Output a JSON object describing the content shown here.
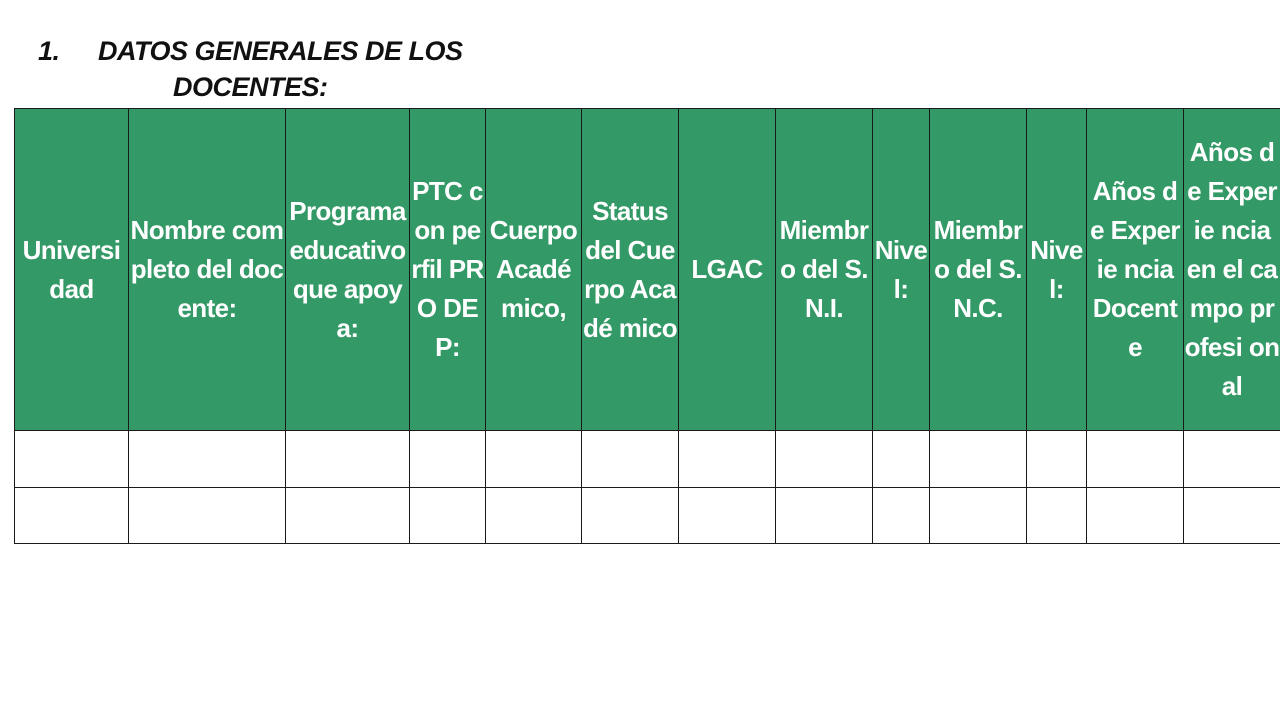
{
  "heading": {
    "number": "1.",
    "line1": "DATOS GENERALES DE LOS",
    "line2": "DOCENTES:"
  },
  "table": {
    "headers": [
      "Universi dad",
      "Nombre completo del docente:",
      "Programa educativo que apoya:",
      "PTC con perfil PRO DEP:",
      "Cuerpo Acadé mico,",
      "Status del Cuerpo Acadé mico",
      "LGAC",
      "Miembr o del S.N.I.",
      "Nive l:",
      "Miembr o del S.N.C.",
      "Nive l:",
      "Años de Experie ncia Docent e",
      "Años de Experie ncia en el campo profesi onal"
    ],
    "rows": [
      [
        "",
        "",
        "",
        "",
        "",
        "",
        "",
        "",
        "",
        "",
        "",
        "",
        ""
      ],
      [
        "",
        "",
        "",
        "",
        "",
        "",
        "",
        "",
        "",
        "",
        "",
        "",
        ""
      ]
    ]
  }
}
